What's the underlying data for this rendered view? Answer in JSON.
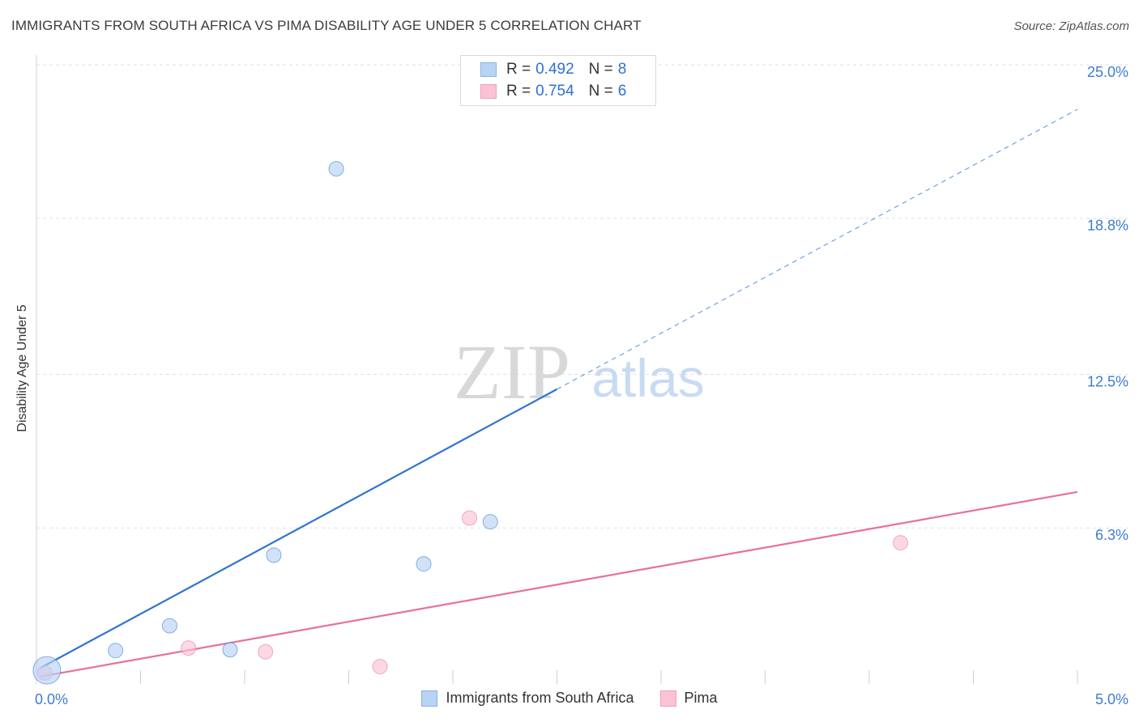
{
  "title": "IMMIGRANTS FROM SOUTH AFRICA VS PIMA DISABILITY AGE UNDER 5 CORRELATION CHART",
  "source": "Source: ZipAtlas.com",
  "watermark": {
    "zip": "ZIP",
    "atlas": "atlas"
  },
  "colors": {
    "blue": "#2f74d0",
    "blue_fill": "#b9d3f5",
    "pink": "#e8709a",
    "pink_fill": "#f9c3d4",
    "tick_label": "#3f7bd1",
    "grid": "#e1e1e1"
  },
  "legend": [
    {
      "r_label": "R =",
      "r_value": "0.492",
      "n_label": "N =",
      "n_value": "8"
    },
    {
      "r_label": "R =",
      "r_value": "0.754",
      "n_label": "N =",
      "n_value": "6"
    }
  ],
  "chart_data": {
    "type": "scatter",
    "title": "IMMIGRANTS FROM SOUTH AFRICA VS PIMA DISABILITY AGE UNDER 5 CORRELATION CHART",
    "xlabel": "",
    "ylabel": "Disability Age Under 5",
    "xlim": [
      0,
      5
    ],
    "ylim": [
      0,
      25
    ],
    "x_tick_labels": [
      {
        "value": 0,
        "label": "0.0%"
      },
      {
        "value": 5,
        "label": "5.0%"
      }
    ],
    "y_tick_labels": [
      {
        "value": 6.3,
        "label": "6.3%"
      },
      {
        "value": 12.5,
        "label": "12.5%"
      },
      {
        "value": 18.8,
        "label": "18.8%"
      },
      {
        "value": 25,
        "label": "25.0%"
      }
    ],
    "series": [
      {
        "name": "Immigrants from South Africa",
        "color": "#2f74d0",
        "fill": "#b9d3f5",
        "points": [
          {
            "x": 0.05,
            "y": 0.55,
            "size": "large"
          },
          {
            "x": 0.38,
            "y": 1.35
          },
          {
            "x": 0.64,
            "y": 2.35
          },
          {
            "x": 0.93,
            "y": 1.38
          },
          {
            "x": 1.14,
            "y": 5.2
          },
          {
            "x": 1.44,
            "y": 20.8
          },
          {
            "x": 1.86,
            "y": 4.85
          },
          {
            "x": 2.18,
            "y": 6.55
          }
        ],
        "trend": {
          "x_start": 0.02,
          "y_start": 0.65,
          "x_end": 2.5,
          "y_end": 11.9,
          "x_dashed_end": 5.0,
          "y_dashed_end": 23.2
        }
      },
      {
        "name": "Pima",
        "color": "#e8709a",
        "fill": "#f9c3d4",
        "points": [
          {
            "x": 0.04,
            "y": 0.45
          },
          {
            "x": 0.73,
            "y": 1.45
          },
          {
            "x": 1.1,
            "y": 1.3
          },
          {
            "x": 1.65,
            "y": 0.7
          },
          {
            "x": 2.08,
            "y": 6.7
          },
          {
            "x": 4.15,
            "y": 5.7
          }
        ],
        "trend": {
          "x_start": 0.02,
          "y_start": 0.3,
          "x_end": 5.0,
          "y_end": 7.75
        }
      }
    ],
    "legend_position": "top-center"
  }
}
